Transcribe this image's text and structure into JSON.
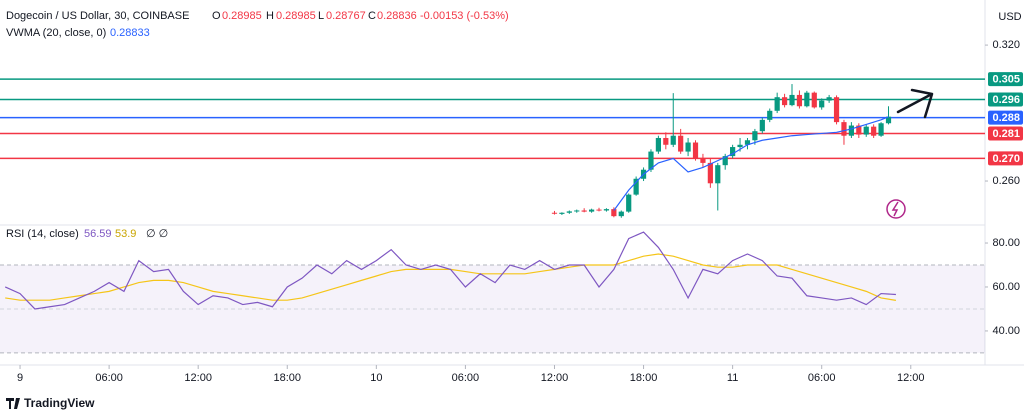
{
  "header": {
    "symbol": "Dogecoin / US Dollar, 30, COINBASE",
    "o_label": "O",
    "o": 0.28985,
    "h_label": "H",
    "h": 0.28985,
    "l_label": "L",
    "l": 0.28767,
    "c_label": "C",
    "c": 0.28836,
    "change": "-0.00153 (-0.53%)",
    "currency": "USD",
    "brand": "TradingView"
  },
  "chart_data": [
    {
      "type": "candlestick",
      "up_color": "#089981",
      "down_color": "#f23645",
      "x": [
        72,
        73,
        74,
        75,
        76,
        77,
        78,
        79,
        80,
        81,
        82,
        83,
        84,
        85,
        86,
        87,
        88,
        89,
        90,
        91,
        92,
        93,
        94,
        95,
        96,
        97,
        98,
        99,
        100,
        101,
        102,
        103,
        104,
        105,
        106,
        107,
        108,
        109,
        110,
        111,
        112,
        113,
        114,
        115,
        116,
        117
      ],
      "open": [
        0.246,
        0.2455,
        0.246,
        0.2466,
        0.247,
        0.2465,
        0.2474,
        0.247,
        0.2476,
        0.2445,
        0.2465,
        0.254,
        0.261,
        0.265,
        0.273,
        0.279,
        0.276,
        0.28,
        0.273,
        0.277,
        0.27,
        0.268,
        0.259,
        0.267,
        0.271,
        0.275,
        0.276,
        0.278,
        0.282,
        0.287,
        0.291,
        0.297,
        0.2935,
        0.298,
        0.293,
        0.299,
        0.2925,
        0.2955,
        0.297,
        0.286,
        0.28,
        0.2845,
        0.2805,
        0.284,
        0.28,
        0.2855
      ],
      "high": [
        0.2468,
        0.2462,
        0.247,
        0.2474,
        0.248,
        0.2478,
        0.2482,
        0.248,
        0.2484,
        0.247,
        0.2545,
        0.262,
        0.266,
        0.274,
        0.28,
        0.2815,
        0.2988,
        0.283,
        0.279,
        0.278,
        0.272,
        0.27,
        0.268,
        0.272,
        0.276,
        0.279,
        0.279,
        0.283,
        0.288,
        0.292,
        0.299,
        0.2985,
        0.3028,
        0.3,
        0.2998,
        0.2995,
        0.2965,
        0.298,
        0.2978,
        0.287,
        0.286,
        0.2855,
        0.285,
        0.285,
        0.286,
        0.293
      ],
      "low": [
        0.2452,
        0.245,
        0.2455,
        0.246,
        0.2462,
        0.246,
        0.2466,
        0.2465,
        0.244,
        0.2438,
        0.246,
        0.2535,
        0.26,
        0.264,
        0.272,
        0.274,
        0.275,
        0.272,
        0.271,
        0.269,
        0.266,
        0.257,
        0.247,
        0.265,
        0.27,
        0.273,
        0.274,
        0.276,
        0.281,
        0.286,
        0.29,
        0.2925,
        0.293,
        0.292,
        0.2925,
        0.292,
        0.2915,
        0.2945,
        0.285,
        0.276,
        0.279,
        0.279,
        0.2795,
        0.279,
        0.2795,
        0.285
      ],
      "close": [
        0.2458,
        0.246,
        0.2466,
        0.247,
        0.2465,
        0.2474,
        0.247,
        0.2476,
        0.2445,
        0.2465,
        0.254,
        0.261,
        0.265,
        0.273,
        0.279,
        0.276,
        0.28,
        0.273,
        0.277,
        0.27,
        0.268,
        0.259,
        0.267,
        0.271,
        0.275,
        0.276,
        0.278,
        0.282,
        0.287,
        0.291,
        0.297,
        0.2935,
        0.298,
        0.293,
        0.299,
        0.2925,
        0.2955,
        0.297,
        0.286,
        0.28,
        0.2845,
        0.2805,
        0.284,
        0.28,
        0.2855,
        0.2884
      ],
      "series": [
        {
          "name": "VWMA (20, close, 0)",
          "last": 0.28833,
          "color": "#2962ff",
          "x": [
            80,
            82,
            84,
            86,
            88,
            90,
            92,
            94,
            96,
            98,
            100,
            102,
            104,
            106,
            108,
            110,
            112,
            114,
            116,
            117
          ],
          "values": [
            0.247,
            0.256,
            0.263,
            0.268,
            0.27,
            0.264,
            0.266,
            0.269,
            0.272,
            0.276,
            0.278,
            0.279,
            0.28,
            0.2805,
            0.281,
            0.2815,
            0.283,
            0.285,
            0.287,
            0.28833
          ]
        }
      ],
      "levels": [
        {
          "value": 0.305,
          "label": "0.305",
          "color": "#089981"
        },
        {
          "value": 0.296,
          "label": "0.296",
          "color": "#089981"
        },
        {
          "value": 0.288,
          "label": "0.288",
          "color": "#2962ff"
        },
        {
          "value": 0.281,
          "label": "0.281",
          "color": "#f23645"
        },
        {
          "value": 0.27,
          "label": "0.270",
          "color": "#f23645"
        }
      ],
      "ylim": [
        0.2428,
        0.3399
      ],
      "yticks": [
        {
          "value": 0.32,
          "label": "0.320"
        },
        {
          "value": 0.26,
          "label": "0.260"
        }
      ],
      "xlim": [
        -2.7,
        130
      ],
      "xticks": [
        {
          "value": 0,
          "label": "9"
        },
        {
          "value": 12,
          "label": "06:00"
        },
        {
          "value": 24,
          "label": "12:00"
        },
        {
          "value": 36,
          "label": "18:00"
        },
        {
          "value": 48,
          "label": "10"
        },
        {
          "value": 60,
          "label": "06:00"
        },
        {
          "value": 72,
          "label": "12:00"
        },
        {
          "value": 84,
          "label": "18:00"
        },
        {
          "value": 96,
          "label": "11"
        },
        {
          "value": 108,
          "label": "06:00"
        },
        {
          "value": 120,
          "label": "12:00"
        }
      ]
    },
    {
      "type": "line",
      "title": "RSI (14, close)",
      "null_marks": "∅ ∅",
      "x": [
        -2,
        0,
        2,
        4,
        6,
        8,
        10,
        12,
        14,
        16,
        18,
        20,
        22,
        24,
        26,
        28,
        30,
        32,
        34,
        36,
        38,
        40,
        42,
        44,
        46,
        48,
        50,
        52,
        54,
        56,
        58,
        60,
        62,
        64,
        66,
        68,
        70,
        72,
        74,
        76,
        78,
        80,
        82,
        84,
        86,
        88,
        90,
        92,
        94,
        96,
        98,
        100,
        102,
        104,
        106,
        108,
        110,
        112,
        114,
        116,
        118
      ],
      "series": [
        {
          "name": "RSI",
          "last": 56.59,
          "color": "#7e57c2",
          "values": [
            60,
            57,
            50,
            51,
            52,
            55,
            58,
            62,
            58,
            72,
            67,
            68,
            58,
            52,
            56,
            55,
            52,
            53,
            51,
            60,
            64,
            70,
            66,
            72,
            68,
            72,
            77,
            70,
            68,
            70,
            68,
            60,
            66,
            62,
            70,
            68,
            72,
            68,
            70,
            70,
            60,
            68,
            82,
            85,
            78,
            68,
            55,
            68,
            66,
            72,
            75,
            72,
            65,
            64,
            56,
            55,
            54,
            55,
            52,
            57,
            56.59
          ]
        },
        {
          "name": "RSI-based MA",
          "last": 53.9,
          "color": "#f5c518",
          "values": [
            55,
            54,
            54,
            54,
            55,
            56,
            57,
            58,
            60,
            62,
            63,
            63,
            62,
            60,
            58,
            57,
            56,
            55,
            54,
            54,
            55,
            57,
            59,
            61,
            63,
            65,
            67,
            68,
            68,
            68,
            68,
            67,
            66,
            66,
            66,
            66,
            67,
            68,
            69,
            70,
            70,
            70,
            72,
            74,
            75,
            74,
            72,
            70,
            69,
            69,
            70,
            70,
            70,
            68,
            66,
            64,
            62,
            60,
            58,
            55,
            53.9
          ]
        }
      ],
      "band": [
        30,
        70
      ],
      "midline": 50,
      "ylim": [
        24.5,
        88.2
      ],
      "yticks": [
        {
          "value": 80,
          "label": "80.00"
        },
        {
          "value": 60,
          "label": "60.00"
        },
        {
          "value": 40,
          "label": "40.00"
        }
      ]
    }
  ]
}
